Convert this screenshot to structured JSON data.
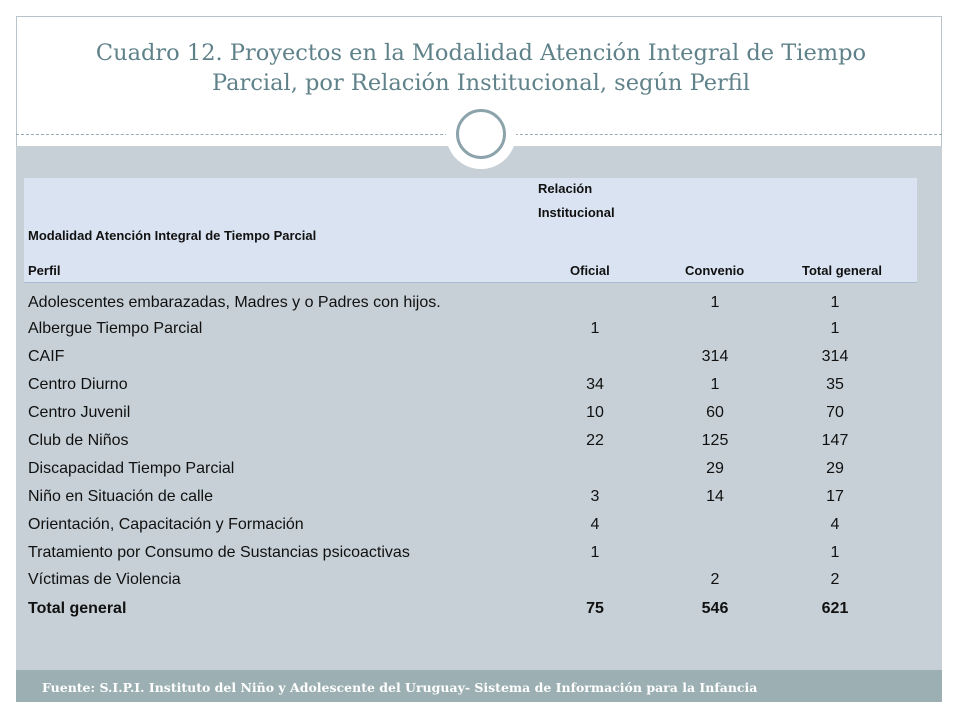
{
  "title_line1": "Cuadro 12. Proyectos en la Modalidad Atención Integral de Tiempo",
  "title_line2": "Parcial, por Relación Institucional, según Perfil",
  "header": {
    "group_label_line1": "Relación",
    "group_label_line2": "Institucional",
    "modalidad": "Modalidad Atención Integral de Tiempo Parcial",
    "perfil": "Perfil",
    "oficial": "Oficial",
    "convenio": "Convenio",
    "total": "Total general"
  },
  "rows": [
    {
      "label": "Adolescentes embarazadas, Madres y o  Padres con hijos.",
      "oficial": "",
      "convenio": "1",
      "total": "1"
    },
    {
      "label": "Albergue Tiempo Parcial",
      "oficial": "1",
      "convenio": "",
      "total": "1"
    },
    {
      "label": "CAIF",
      "oficial": "",
      "convenio": "314",
      "total": "314"
    },
    {
      "label": "Centro Diurno",
      "oficial": "34",
      "convenio": "1",
      "total": "35"
    },
    {
      "label": "Centro Juvenil",
      "oficial": "10",
      "convenio": "60",
      "total": "70"
    },
    {
      "label": "Club de Niños",
      "oficial": "22",
      "convenio": "125",
      "total": "147"
    },
    {
      "label": "Discapacidad Tiempo Parcial",
      "oficial": "",
      "convenio": "29",
      "total": "29"
    },
    {
      "label": "Niño en Situación de calle",
      "oficial": "3",
      "convenio": "14",
      "total": "17"
    },
    {
      "label": "Orientación, Capacitación y Formación",
      "oficial": "4",
      "convenio": "",
      "total": "4"
    },
    {
      "label": "Tratamiento por Consumo de Sustancias psicoactivas",
      "oficial": "1",
      "convenio": "",
      "total": "1"
    },
    {
      "label": "Víctimas de Violencia",
      "oficial": "",
      "convenio": "2",
      "total": "2"
    }
  ],
  "total_row": {
    "label": "Total general",
    "oficial": "75",
    "convenio": "546",
    "total": "621"
  },
  "footer": "Fuente: S.I.P.I. Instituto del Niño y Adolescente del Uruguay- Sistema de Información para la Infancia"
}
